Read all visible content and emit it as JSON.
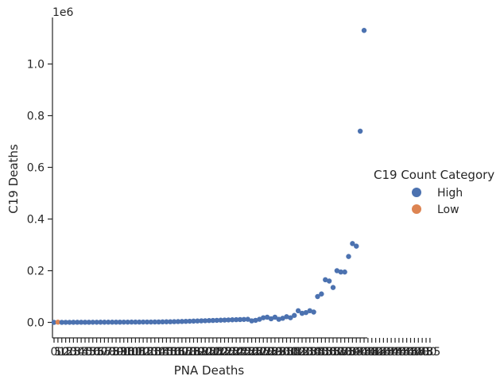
{
  "chart_data": {
    "type": "scatter",
    "xlabel": "PNA Deaths",
    "ylabel": "C19 Deaths",
    "y_offset_label": "1e6",
    "ylim": [
      -60000,
      1180000
    ],
    "y_ticks": [
      0,
      200000,
      400000,
      600000,
      800000,
      1000000
    ],
    "y_tick_labels": [
      "0.0",
      "0.2",
      "0.4",
      "0.6",
      "0.8",
      "1.0"
    ],
    "x_tick_labels_visible": [
      "0",
      "5",
      "10",
      "15",
      "20",
      "25",
      "30",
      "35",
      "40",
      "45",
      "50",
      "55",
      "60",
      "65",
      "70",
      "75",
      "80",
      "85",
      "90",
      "95",
      "100",
      "105",
      "110",
      "115",
      "120",
      "125",
      "130",
      "135",
      "140",
      "145",
      "150",
      "155",
      "160",
      "165",
      "170",
      "175",
      "180",
      "185",
      "190",
      "195",
      "200",
      "205",
      "210",
      "215",
      "220",
      "225",
      "230",
      "235",
      "240",
      "245",
      "250",
      "255",
      "260",
      "265",
      "270",
      "275",
      "280",
      "285",
      "290",
      "295",
      "300",
      "305",
      "310",
      "315",
      "320",
      "325",
      "330",
      "335",
      "340",
      "345",
      "350",
      "355",
      "360",
      "365",
      "370",
      "375",
      "380",
      "385",
      "390",
      "395",
      "400",
      "405",
      "410",
      "415",
      "420",
      "425",
      "430",
      "435",
      "440",
      "445",
      "450",
      "455",
      "460",
      "465",
      "470",
      "475",
      "480",
      "485"
    ],
    "legend": {
      "title": "C19 Count Category",
      "placement": "right",
      "entries": [
        {
          "name": "High",
          "color": "#4c72b0"
        },
        {
          "name": "Low",
          "color": "#dd8452"
        }
      ]
    },
    "series": [
      {
        "name": "High",
        "color": "#4c72b0",
        "values": [
          0,
          200,
          300,
          300,
          400,
          500,
          500,
          600,
          600,
          700,
          700,
          800,
          800,
          900,
          900,
          1000,
          1000,
          1100,
          1100,
          1200,
          1300,
          1300,
          1400,
          1500,
          1500,
          1600,
          1700,
          2000,
          2300,
          2500,
          2800,
          3200,
          3600,
          4000,
          4500,
          5000,
          5500,
          6000,
          6500,
          7000,
          7500,
          8000,
          8500,
          9000,
          9500,
          10000,
          10500,
          11000,
          11500,
          12000,
          6000,
          8000,
          12000,
          18000,
          20000,
          14000,
          20000,
          12000,
          16000,
          22000,
          18000,
          27000,
          45000,
          35000,
          38000,
          45000,
          40000,
          100000,
          110000,
          165000,
          160000,
          135000,
          200000,
          195000,
          195000,
          255000,
          305000,
          295000,
          740000,
          1130000
        ]
      },
      {
        "name": "Low",
        "color": "#dd8452",
        "values": [
          1000
        ]
      }
    ]
  }
}
